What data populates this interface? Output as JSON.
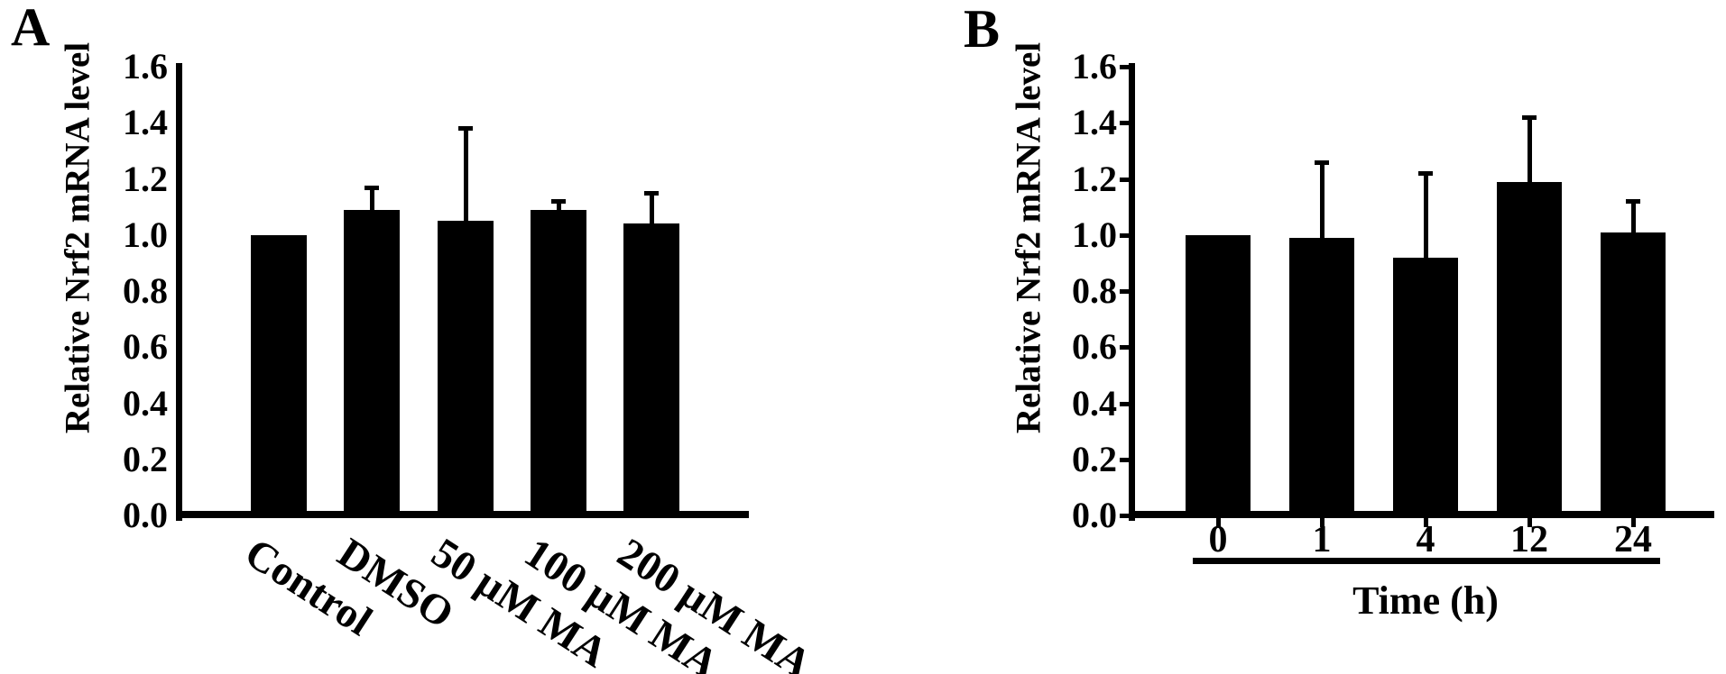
{
  "figure": {
    "background": "#ffffff",
    "ink_color": "#000000"
  },
  "chart_data": [
    {
      "panel_label": "A",
      "type": "bar",
      "title": "",
      "ylabel": "Relative Nrf2 mRNA level",
      "xlabel": "",
      "ylim": [
        0,
        1.6
      ],
      "ytick_step": 0.2,
      "yticks": [
        "0.0",
        "0.2",
        "0.4",
        "0.6",
        "0.8",
        "1.0",
        "1.2",
        "1.4",
        "1.6"
      ],
      "categories": [
        "Control",
        "DMSO",
        "50 µM MA",
        "100 µM MA",
        "200 µM MA"
      ],
      "values": [
        1.0,
        1.09,
        1.05,
        1.09,
        1.04
      ],
      "errors_plus": [
        0,
        0.08,
        0.33,
        0.03,
        0.11
      ],
      "bar_color": "#000000",
      "error_bar_direction": "up",
      "x_tick_label_rotation_deg": 33,
      "y_axis_tick_marks": false,
      "x_axis_tick_marks": false,
      "grid": false,
      "legend": null
    },
    {
      "panel_label": "B",
      "type": "bar",
      "title": "",
      "ylabel": "Relative Nrf2 mRNA level",
      "xlabel": "Time (h)",
      "ylim": [
        0,
        1.6
      ],
      "ytick_step": 0.2,
      "yticks": [
        "0.0",
        "0.2",
        "0.4",
        "0.6",
        "0.8",
        "1.0",
        "1.2",
        "1.4",
        "1.6"
      ],
      "categories": [
        "0",
        "1",
        "4",
        "12",
        "24"
      ],
      "values": [
        1.0,
        0.99,
        0.92,
        1.19,
        1.01
      ],
      "errors_plus": [
        0,
        0.27,
        0.3,
        0.23,
        0.11
      ],
      "bar_color": "#000000",
      "error_bar_direction": "up",
      "x_tick_label_rotation_deg": 0,
      "y_axis_tick_marks": true,
      "x_axis_tick_marks": true,
      "x_label_underline": true,
      "grid": false,
      "legend": null
    }
  ]
}
